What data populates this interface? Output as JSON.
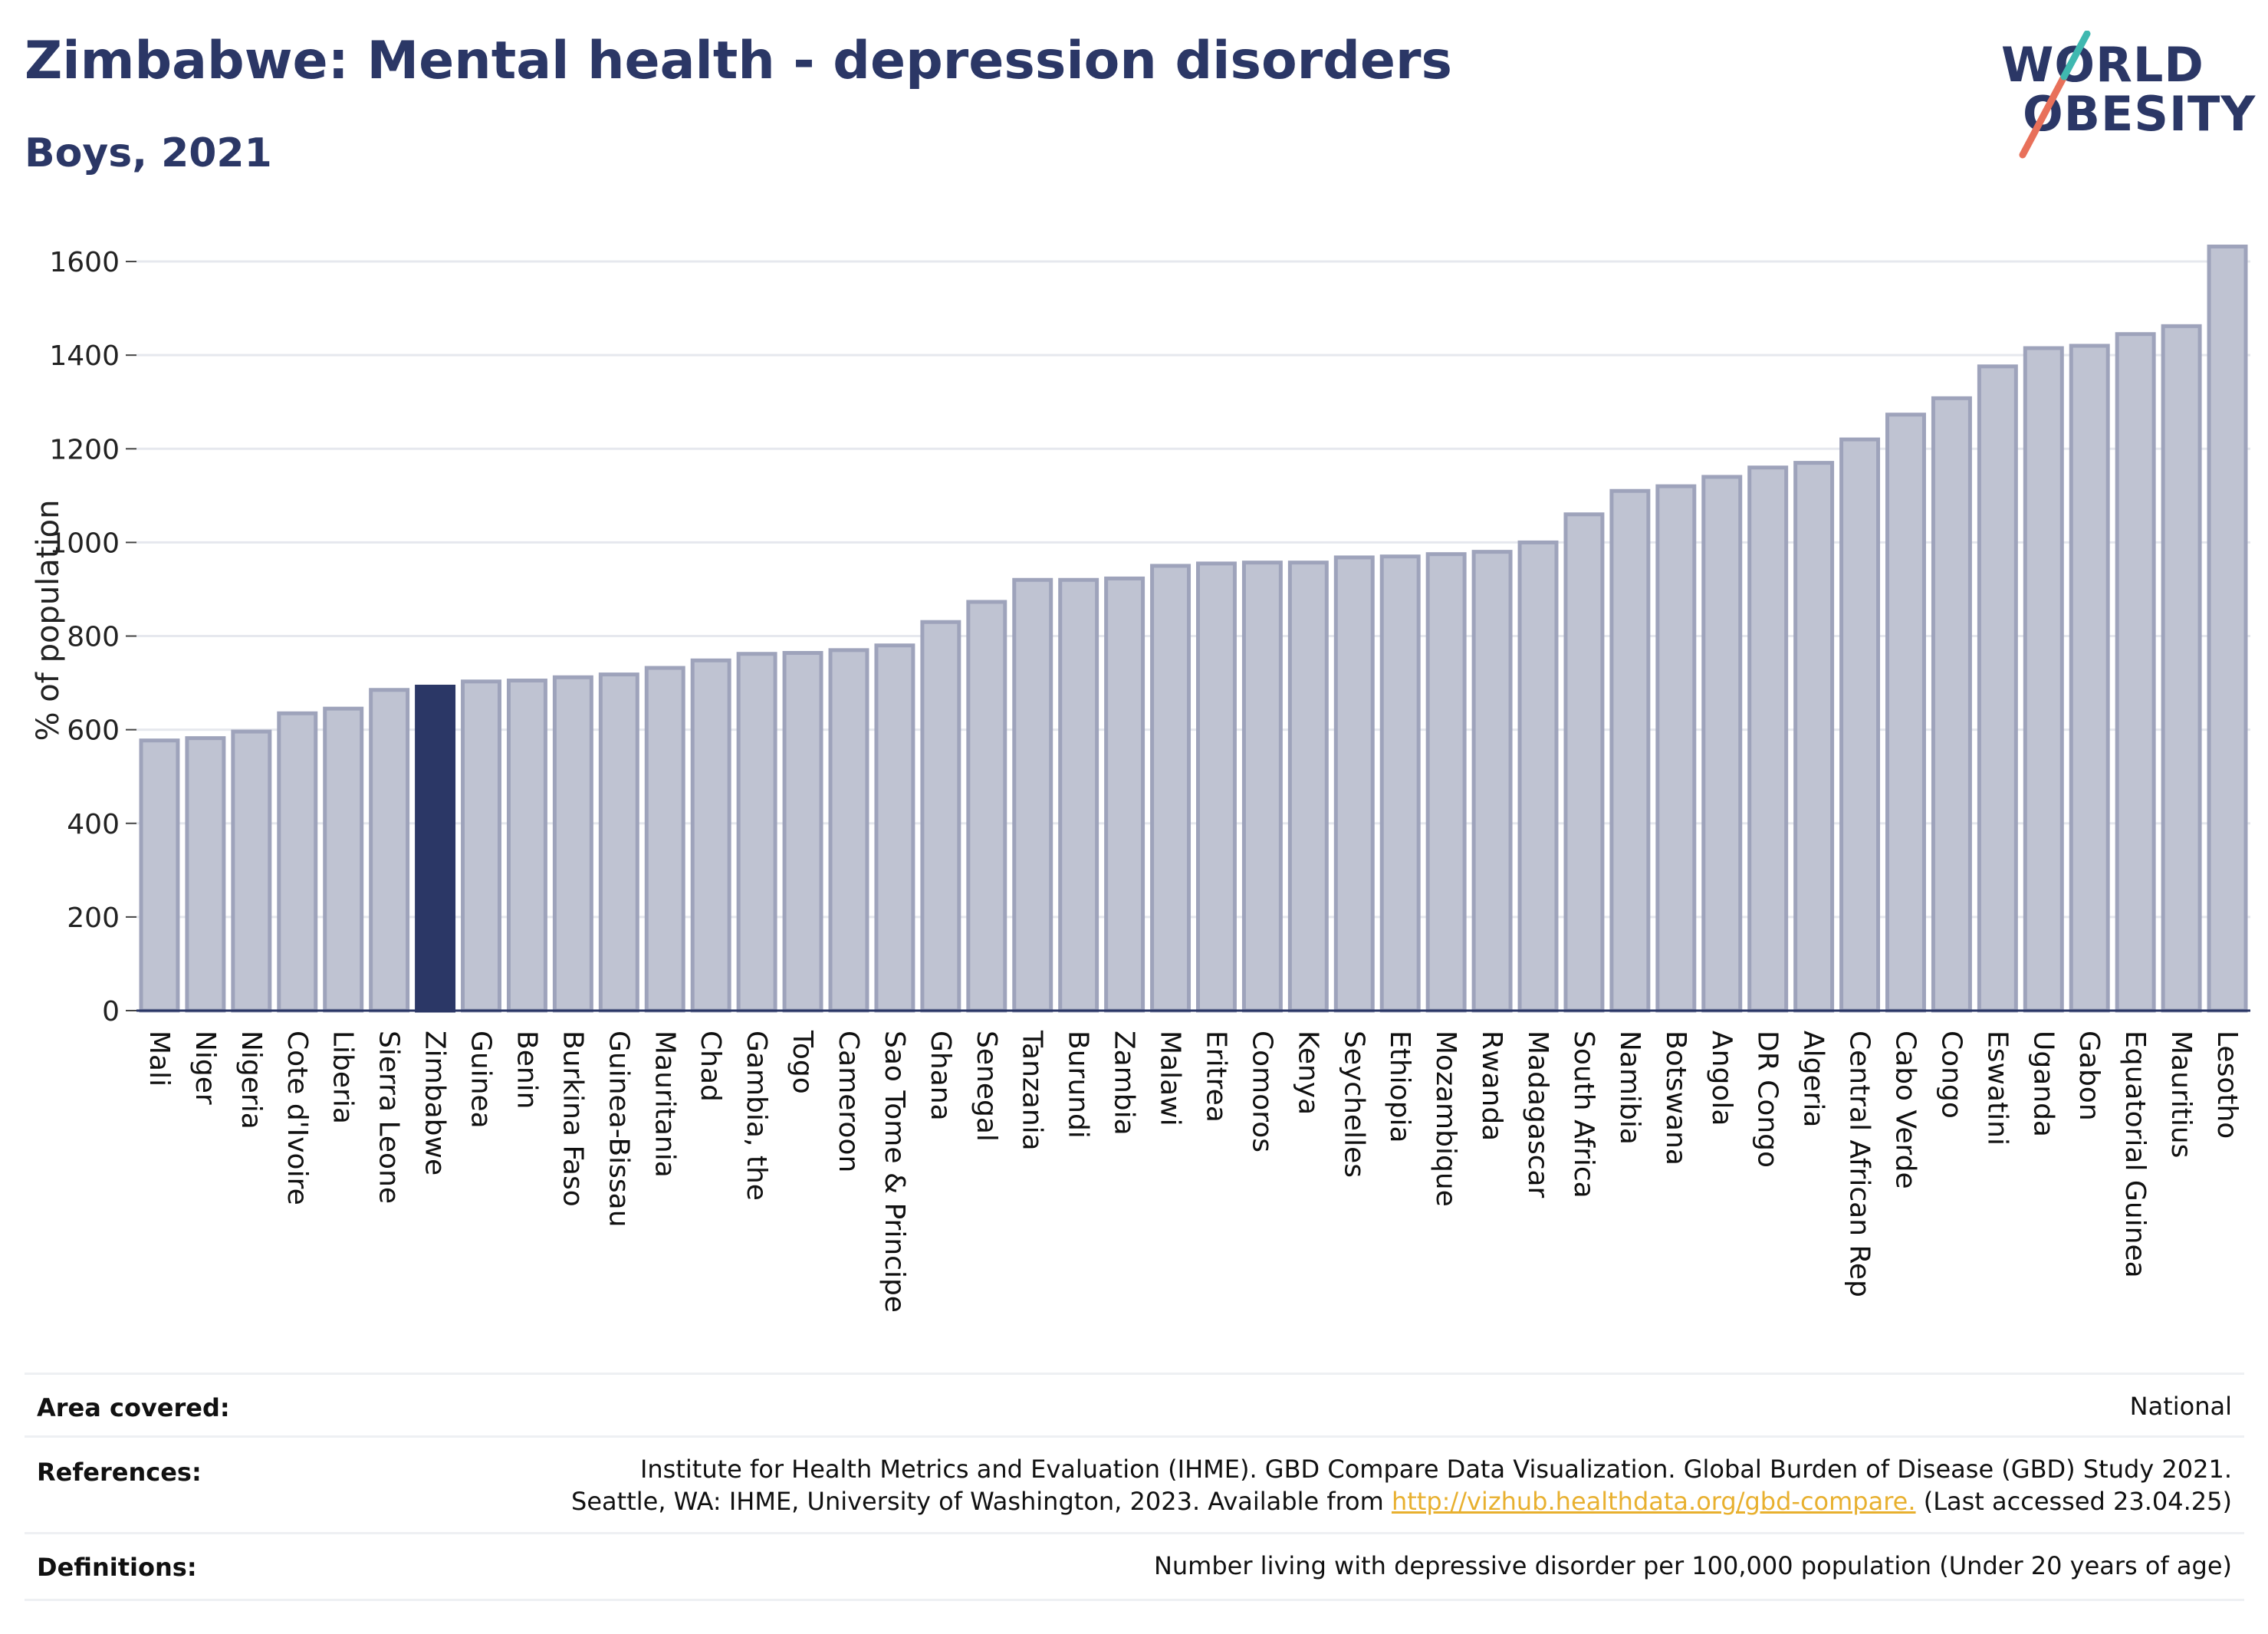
{
  "header": {
    "title": "Zimbabwe: Mental health - depression disorders",
    "subtitle": "Boys, 2021"
  },
  "logo": {
    "line1": "WORLD",
    "line2": "OBESITY"
  },
  "chart_data": {
    "type": "bar",
    "title": "Zimbabwe: Mental health - depression disorders",
    "subtitle": "Boys, 2021",
    "xlabel": "",
    "ylabel": "% of population",
    "ylim": [
      0,
      1700
    ],
    "yticks": [
      0,
      200,
      400,
      600,
      800,
      1000,
      1200,
      1400,
      1600
    ],
    "grid": true,
    "highlight": "Zimbabwe",
    "colors": {
      "bar": "#bfc3d2",
      "bar_edge": "#9ea3bb",
      "highlight": "#2b3766"
    },
    "categories": [
      "Mali",
      "Niger",
      "Nigeria",
      "Cote d'Ivoire",
      "Liberia",
      "Sierra Leone",
      "Zimbabwe",
      "Guinea",
      "Benin",
      "Burkina Faso",
      "Guinea-Bissau",
      "Mauritania",
      "Chad",
      "Gambia, the",
      "Togo",
      "Cameroon",
      "Sao Tome & Principe",
      "Ghana",
      "Senegal",
      "Tanzania",
      "Burundi",
      "Zambia",
      "Malawi",
      "Eritrea",
      "Comoros",
      "Kenya",
      "Seychelles",
      "Ethiopia",
      "Mozambique",
      "Rwanda",
      "Madagascar",
      "South Africa",
      "Namibia",
      "Botswana",
      "Angola",
      "DR Congo",
      "Algeria",
      "Central African Rep",
      "Cabo Verde",
      "Congo",
      "Eswatini",
      "Uganda",
      "Gabon",
      "Equatorial Guinea",
      "Mauritius",
      "Lesotho"
    ],
    "values": [
      577,
      582,
      596,
      635,
      645,
      685,
      692,
      703,
      705,
      712,
      718,
      732,
      748,
      762,
      764,
      770,
      780,
      830,
      873,
      920,
      920,
      923,
      950,
      955,
      957,
      957,
      968,
      970,
      975,
      980,
      1000,
      1060,
      1110,
      1120,
      1140,
      1160,
      1170,
      1220,
      1273,
      1308,
      1376,
      1415,
      1420,
      1445,
      1462,
      1632
    ]
  },
  "info": {
    "area_label": "Area covered:",
    "area_value": "National",
    "references_label": "References:",
    "references_line1": "Institute for Health Metrics and Evaluation (IHME). GBD Compare Data Visualization. Global Burden of Disease (GBD) Study 2021.",
    "references_line2_pre": "Seattle, WA: IHME, University of Washington, 2023. Available from ",
    "references_link": "http://vizhub.healthdata.org/gbd-compare.",
    "references_line2_post": " (Last accessed 23.04.25)",
    "definitions_label": "Definitions:",
    "definitions_value": "Number living with depressive disorder per 100,000 population (Under 20 years of age)"
  }
}
